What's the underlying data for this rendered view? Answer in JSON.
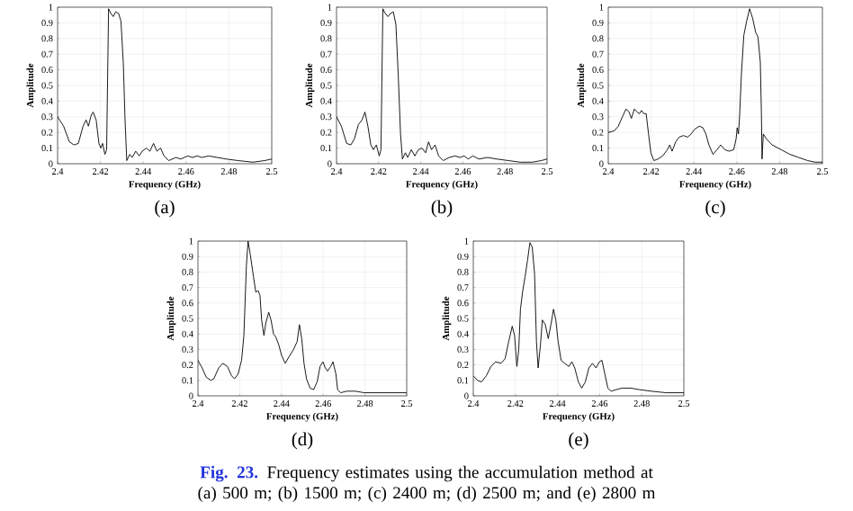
{
  "chart_data": [
    {
      "type": "line",
      "xlabel": "Frequency (GHz)",
      "ylabel": "Amplitude",
      "annotations": [
        "(a)"
      ],
      "xlim": [
        2.4,
        2.5
      ],
      "ylim": [
        0,
        1
      ],
      "xticks": [
        2.4,
        2.42,
        2.44,
        2.46,
        2.48,
        2.5
      ],
      "yticks": [
        0,
        0.1,
        0.2,
        0.3,
        0.4,
        0.5,
        0.6,
        0.7,
        0.8,
        0.9,
        1
      ],
      "grid": true,
      "color": "#000000",
      "x": [
        2.4,
        2.4028,
        2.4055,
        2.4077,
        2.4097,
        2.4119,
        2.4133,
        2.4144,
        2.4157,
        2.4166,
        2.418,
        2.4193,
        2.4202,
        2.421,
        2.4221,
        2.4229,
        2.4238,
        2.4249,
        2.426,
        2.4271,
        2.4285,
        2.4296,
        2.4307,
        2.4315,
        2.4323,
        2.4337,
        2.4348,
        2.4365,
        2.4381,
        2.4395,
        2.4414,
        2.4431,
        2.4448,
        2.4464,
        2.4481,
        2.4497,
        2.4519,
        2.4552,
        2.4575,
        2.4608,
        2.463,
        2.4652,
        2.4674,
        2.4704,
        2.4746,
        2.4787,
        2.4843,
        2.4912,
        2.4967,
        2.5
      ],
      "values": [
        0.3,
        0.24,
        0.14,
        0.12,
        0.13,
        0.24,
        0.28,
        0.24,
        0.31,
        0.33,
        0.28,
        0.13,
        0.1,
        0.13,
        0.06,
        0.09,
        0.99,
        0.96,
        0.94,
        0.97,
        0.96,
        0.91,
        0.64,
        0.28,
        0.02,
        0.06,
        0.04,
        0.08,
        0.05,
        0.08,
        0.1,
        0.08,
        0.13,
        0.08,
        0.1,
        0.05,
        0.02,
        0.04,
        0.03,
        0.05,
        0.04,
        0.05,
        0.04,
        0.05,
        0.04,
        0.03,
        0.02,
        0.01,
        0.02,
        0.03
      ]
    },
    {
      "type": "line",
      "xlabel": "Frequency (GHz)",
      "ylabel": "Amplitude",
      "annotations": [
        "(b)"
      ],
      "xlim": [
        2.4,
        2.5
      ],
      "ylim": [
        0,
        1
      ],
      "xticks": [
        2.4,
        2.42,
        2.44,
        2.46,
        2.48,
        2.5
      ],
      "yticks": [
        0,
        0.1,
        0.2,
        0.3,
        0.4,
        0.5,
        0.6,
        0.7,
        0.8,
        0.9,
        1
      ],
      "grid": true,
      "color": "#000000",
      "x": [
        2.4,
        2.4023,
        2.4048,
        2.4068,
        2.4085,
        2.4104,
        2.4121,
        2.4135,
        2.4149,
        2.4163,
        2.4175,
        2.4189,
        2.4203,
        2.4211,
        2.422,
        2.4231,
        2.4245,
        2.4256,
        2.427,
        2.4282,
        2.4293,
        2.4304,
        2.4313,
        2.4327,
        2.4338,
        2.4355,
        2.4372,
        2.4389,
        2.4406,
        2.4423,
        2.4437,
        2.4451,
        2.4468,
        2.4485,
        2.4507,
        2.4535,
        2.4563,
        2.4586,
        2.4606,
        2.4625,
        2.4648,
        2.4676,
        2.4718,
        2.4761,
        2.4817,
        2.4873,
        2.493,
        2.4972,
        2.5
      ],
      "values": [
        0.3,
        0.24,
        0.13,
        0.12,
        0.16,
        0.25,
        0.28,
        0.33,
        0.24,
        0.12,
        0.09,
        0.12,
        0.05,
        0.09,
        0.99,
        0.96,
        0.94,
        0.96,
        0.97,
        0.89,
        0.57,
        0.19,
        0.03,
        0.07,
        0.04,
        0.09,
        0.05,
        0.09,
        0.1,
        0.07,
        0.14,
        0.09,
        0.12,
        0.05,
        0.02,
        0.04,
        0.05,
        0.04,
        0.05,
        0.03,
        0.05,
        0.03,
        0.04,
        0.03,
        0.02,
        0.01,
        0.01,
        0.02,
        0.03
      ]
    },
    {
      "type": "line",
      "xlabel": "Frequency (GHz)",
      "ylabel": "Amplitude",
      "annotations": [
        "(c)"
      ],
      "xlim": [
        2.4,
        2.5
      ],
      "ylim": [
        0,
        1
      ],
      "xticks": [
        2.4,
        2.42,
        2.44,
        2.46,
        2.48,
        2.5
      ],
      "yticks": [
        0,
        0.1,
        0.2,
        0.3,
        0.4,
        0.5,
        0.6,
        0.7,
        0.8,
        0.9,
        1
      ],
      "grid": true,
      "color": "#000000",
      "x": [
        2.4,
        2.4028,
        2.4047,
        2.4066,
        2.4083,
        2.4097,
        2.4108,
        2.4122,
        2.4135,
        2.4146,
        2.4155,
        2.4166,
        2.4177,
        2.4188,
        2.4199,
        2.4213,
        2.4232,
        2.4254,
        2.4276,
        2.4287,
        2.4298,
        2.4315,
        2.4331,
        2.4351,
        2.437,
        2.4387,
        2.4403,
        2.4425,
        2.4442,
        2.4456,
        2.447,
        2.4489,
        2.4508,
        2.4525,
        2.4544,
        2.4564,
        2.4586,
        2.4597,
        2.4602,
        2.4608,
        2.4613,
        2.4622,
        2.4633,
        2.4646,
        2.466,
        2.4674,
        2.4688,
        2.4699,
        2.471,
        2.4715,
        2.4718,
        2.4724,
        2.4738,
        2.4765,
        2.4807,
        2.4848,
        2.4889,
        2.4931,
        2.4967,
        2.5
      ],
      "values": [
        0.2,
        0.21,
        0.24,
        0.3,
        0.35,
        0.33,
        0.29,
        0.35,
        0.33,
        0.32,
        0.34,
        0.32,
        0.32,
        0.19,
        0.07,
        0.02,
        0.03,
        0.05,
        0.09,
        0.12,
        0.08,
        0.14,
        0.17,
        0.18,
        0.17,
        0.19,
        0.22,
        0.24,
        0.23,
        0.19,
        0.12,
        0.06,
        0.09,
        0.12,
        0.09,
        0.08,
        0.09,
        0.16,
        0.23,
        0.19,
        0.3,
        0.58,
        0.82,
        0.91,
        0.99,
        0.93,
        0.84,
        0.81,
        0.65,
        0.33,
        0.03,
        0.19,
        0.16,
        0.12,
        0.09,
        0.06,
        0.04,
        0.02,
        0.01,
        0.01
      ]
    },
    {
      "type": "line",
      "xlabel": "Frequency (GHz)",
      "ylabel": "Amplitude",
      "annotations": [
        "(d)"
      ],
      "xlim": [
        2.4,
        2.5
      ],
      "ylim": [
        0,
        1
      ],
      "xticks": [
        2.4,
        2.42,
        2.44,
        2.46,
        2.48,
        2.5
      ],
      "yticks": [
        0,
        0.1,
        0.2,
        0.3,
        0.4,
        0.5,
        0.6,
        0.7,
        0.8,
        0.9,
        1
      ],
      "grid": true,
      "color": "#000000",
      "x": [
        2.4,
        2.402,
        2.404,
        2.4062,
        2.4076,
        2.4099,
        2.4119,
        2.4141,
        2.4161,
        2.4175,
        2.4192,
        2.4209,
        2.422,
        2.4232,
        2.424,
        2.4251,
        2.4266,
        2.4277,
        2.4288,
        2.4297,
        2.4305,
        2.4316,
        2.4325,
        2.4339,
        2.435,
        2.4362,
        2.4373,
        2.4387,
        2.4401,
        2.4418,
        2.4435,
        2.4458,
        2.4475,
        2.4486,
        2.4497,
        2.4508,
        2.452,
        2.4537,
        2.4554,
        2.4571,
        2.4585,
        2.4599,
        2.461,
        2.4621,
        2.4636,
        2.4647,
        2.4661,
        2.4669,
        2.4684,
        2.4712,
        2.4754,
        2.4797,
        2.4853,
        2.4924,
        2.5
      ],
      "values": [
        0.23,
        0.18,
        0.12,
        0.1,
        0.11,
        0.18,
        0.21,
        0.19,
        0.13,
        0.11,
        0.14,
        0.23,
        0.39,
        0.84,
        1.0,
        0.91,
        0.77,
        0.67,
        0.68,
        0.65,
        0.49,
        0.39,
        0.47,
        0.54,
        0.49,
        0.4,
        0.38,
        0.33,
        0.26,
        0.21,
        0.25,
        0.3,
        0.35,
        0.46,
        0.37,
        0.21,
        0.11,
        0.05,
        0.04,
        0.09,
        0.19,
        0.22,
        0.18,
        0.16,
        0.19,
        0.22,
        0.14,
        0.04,
        0.02,
        0.03,
        0.03,
        0.02,
        0.02,
        0.02,
        0.02
      ]
    },
    {
      "type": "line",
      "xlabel": "Frequency (GHz)",
      "ylabel": "Amplitude",
      "annotations": [
        "(e)",
        "Fig. 23.",
        "Frequency estimates using the accumulation method at (a) 500 m; (b) 1500 m; (c) 2400 m; (d) 2500 m; and (e) 2800 m"
      ],
      "xlim": [
        2.4,
        2.5
      ],
      "ylim": [
        0,
        1
      ],
      "xticks": [
        2.4,
        2.42,
        2.44,
        2.46,
        2.48,
        2.5
      ],
      "yticks": [
        0,
        0.1,
        0.2,
        0.3,
        0.4,
        0.5,
        0.6,
        0.7,
        0.8,
        0.9,
        1
      ],
      "grid": true,
      "color": "#000000",
      "x": [
        2.4,
        2.402,
        2.4039,
        2.4062,
        2.4084,
        2.4106,
        2.4132,
        2.4151,
        2.4168,
        2.4185,
        2.4196,
        2.4207,
        2.4216,
        2.4224,
        2.4235,
        2.4246,
        2.4258,
        2.4269,
        2.428,
        2.4291,
        2.43,
        2.4308,
        2.4319,
        2.4328,
        2.4342,
        2.4356,
        2.437,
        2.4381,
        2.4392,
        2.4403,
        2.4417,
        2.4434,
        2.4454,
        2.4468,
        2.4482,
        2.4499,
        2.4515,
        2.4532,
        2.4549,
        2.4566,
        2.4583,
        2.4599,
        2.4611,
        2.4625,
        2.4639,
        2.4655,
        2.4678,
        2.4706,
        2.4748,
        2.479,
        2.4846,
        2.4916,
        2.5
      ],
      "values": [
        0.13,
        0.1,
        0.09,
        0.13,
        0.19,
        0.22,
        0.21,
        0.24,
        0.35,
        0.45,
        0.39,
        0.19,
        0.3,
        0.56,
        0.68,
        0.77,
        0.88,
        0.99,
        0.96,
        0.79,
        0.35,
        0.18,
        0.33,
        0.49,
        0.46,
        0.37,
        0.47,
        0.56,
        0.49,
        0.35,
        0.23,
        0.21,
        0.19,
        0.22,
        0.18,
        0.09,
        0.05,
        0.09,
        0.18,
        0.21,
        0.18,
        0.22,
        0.23,
        0.14,
        0.05,
        0.03,
        0.04,
        0.05,
        0.05,
        0.04,
        0.03,
        0.02,
        0.02
      ]
    }
  ]
}
